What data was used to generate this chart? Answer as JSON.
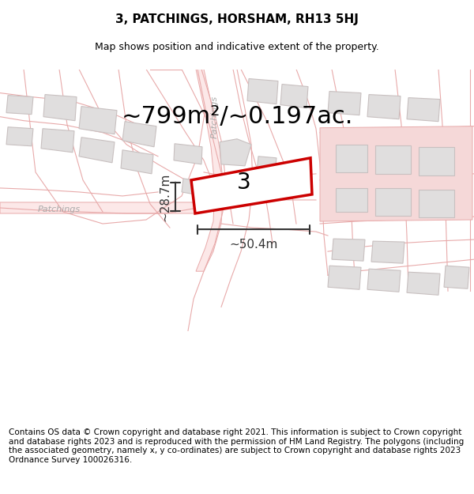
{
  "title": "3, PATCHINGS, HORSHAM, RH13 5HJ",
  "subtitle": "Map shows position and indicative extent of the property.",
  "footer": "Contains OS data © Crown copyright and database right 2021. This information is subject to Crown copyright and database rights 2023 and is reproduced with the permission of HM Land Registry. The polygons (including the associated geometry, namely x, y co-ordinates) are subject to Crown copyright and database rights 2023 Ordnance Survey 100026316.",
  "area_text": "~799m²/~0.197ac.",
  "width_text": "~50.4m",
  "height_text": "~28.7m",
  "property_label": "3",
  "bg_color": "#ffffff",
  "road_color": "#fce8e8",
  "road_outline": "#e8aaaa",
  "building_color": "#e0dede",
  "building_outline": "#c8c0c0",
  "highlight_color": "#f5d8d8",
  "property_fill": "#ffffff",
  "property_outline": "#cc0000",
  "dim_color": "#333333",
  "patchings_label_color": "#aaaaaa",
  "title_fontsize": 11,
  "subtitle_fontsize": 9,
  "footer_fontsize": 7.5,
  "area_fontsize": 22,
  "label_fontsize": 20,
  "dim_fontsize": 11
}
